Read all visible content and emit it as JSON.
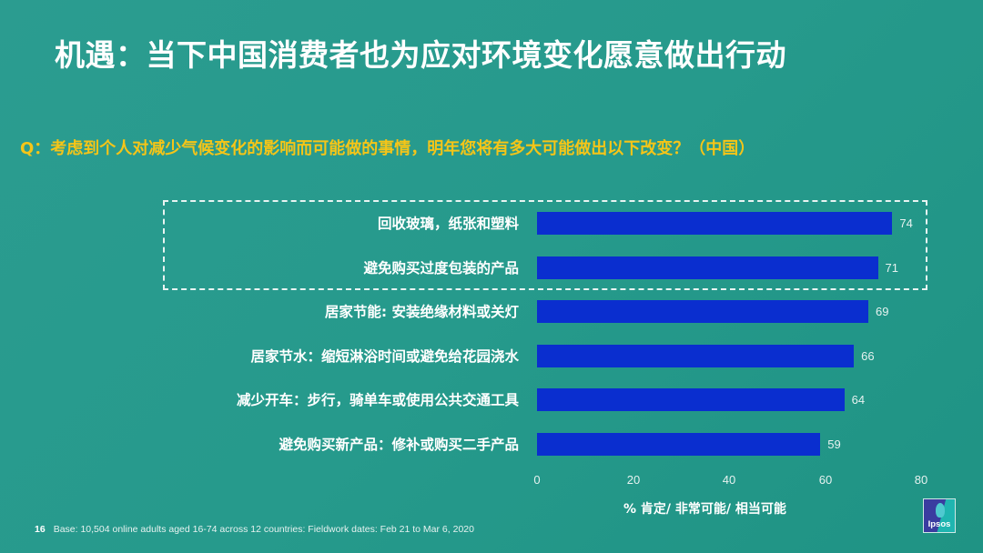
{
  "slide": {
    "title": "机遇：当下中国消费者也为应对环境变化愿意做出行动",
    "question": "Q：考虑到个人对减少气候变化的影响而可能做的事情，明年您将有多大可能做出以下改变？（中国）",
    "page_number": "16",
    "footer_note": "Base: 10,504 online adults aged 16-74  across 12 countries: Fieldwork dates: Feb 21 to Mar 6, 2020",
    "logo_text": "Ipsos",
    "colors": {
      "background": "#269a8c",
      "bar": "#0a2ecf",
      "question_text": "#f5c518",
      "title_text": "#ffffff"
    }
  },
  "chart_data": {
    "type": "bar",
    "orientation": "horizontal",
    "title": "",
    "categories": [
      "回收玻璃，纸张和塑料",
      "避免购买过度包装的产品",
      "居家节能: 安装绝缘材料或关灯",
      "居家节水：缩短淋浴时间或避免给花园浇水",
      "减少开车：步行，骑单车或使用公共交通工具",
      "避免购买新产品：修补或购买二手产品"
    ],
    "values": [
      74,
      71,
      69,
      66,
      64,
      59
    ],
    "value_labels": [
      "74",
      "71",
      "69",
      "66",
      "64",
      "59"
    ],
    "xlabel": "% 肯定/ 非常可能/ 相当可能",
    "ylabel": "",
    "xlim": [
      0,
      80
    ],
    "x_ticks": [
      "0",
      "20",
      "40",
      "60",
      "80"
    ],
    "grid": false,
    "highlight": {
      "style": "dashed-box",
      "categories": [
        "回收玻璃，纸张和塑料",
        "避免购买过度包装的产品"
      ]
    }
  }
}
